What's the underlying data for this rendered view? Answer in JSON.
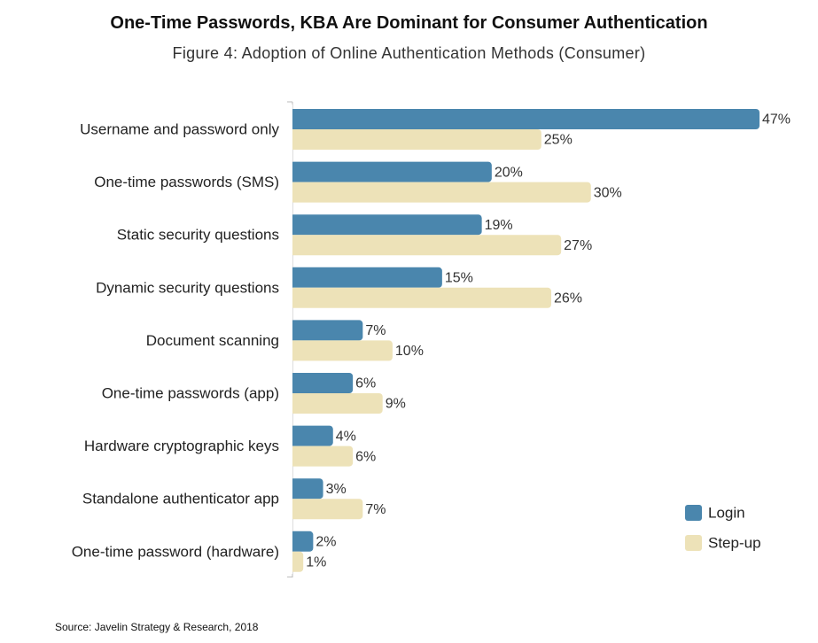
{
  "title": "One-Time Passwords, KBA Are Dominant for Consumer Authentication",
  "subtitle": "Figure 4: Adoption of Online Authentication Methods (Consumer)",
  "source": "Source: Javelin Strategy & Research, 2018",
  "colors": {
    "login": "#4a86ad",
    "stepup": "#ede2b8"
  },
  "chart_data": {
    "type": "bar",
    "orientation": "horizontal",
    "categories": [
      "Username and password only",
      "One-time passwords (SMS)",
      "Static security questions",
      "Dynamic security questions",
      "Document scanning",
      "One-time passwords (app)",
      "Hardware cryptographic keys",
      "Standalone authenticator app",
      "One-time password (hardware)"
    ],
    "series": [
      {
        "name": "Login",
        "values": [
          47,
          20,
          19,
          15,
          7,
          6,
          4,
          3,
          2
        ]
      },
      {
        "name": "Step-up",
        "values": [
          25,
          30,
          27,
          26,
          10,
          9,
          6,
          7,
          1
        ]
      }
    ],
    "value_suffix": "%",
    "xlim": [
      0,
      47
    ],
    "grid": false,
    "legend": "bottom-right"
  }
}
